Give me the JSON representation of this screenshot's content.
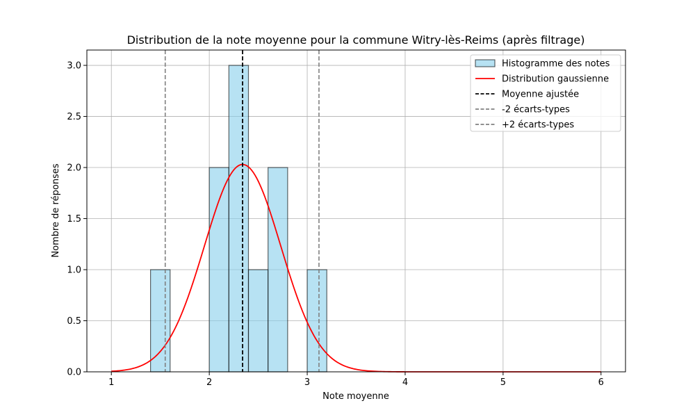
{
  "chart_data": {
    "type": "bar",
    "title": "Distribution de la note moyenne pour la commune Witry-lès-Reims (après filtrage)",
    "xlabel": "Note moyenne",
    "ylabel": "Nombre de réponses",
    "xlim": [
      0.75,
      6.25
    ],
    "ylim": [
      0,
      3.15
    ],
    "x_ticks": [
      1,
      2,
      3,
      4,
      5,
      6
    ],
    "x_tick_labels": [
      "1",
      "2",
      "3",
      "4",
      "5",
      "6"
    ],
    "y_ticks": [
      0,
      0.5,
      1,
      1.5,
      2,
      2.5,
      3
    ],
    "y_tick_labels": [
      "0.0",
      "0.5",
      "1.0",
      "1.5",
      "2.0",
      "2.5",
      "3.0"
    ],
    "grid": true,
    "legend_position": "top-right",
    "histogram": {
      "name": "Histogramme des notes",
      "color": "#87CEEB",
      "edge_color": "#000000",
      "bins": [
        {
          "start": 1.4,
          "end": 1.6,
          "count": 1
        },
        {
          "start": 2.0,
          "end": 2.2,
          "count": 2
        },
        {
          "start": 2.2,
          "end": 2.4,
          "count": 3
        },
        {
          "start": 2.4,
          "end": 2.6,
          "count": 1
        },
        {
          "start": 2.6,
          "end": 2.8,
          "count": 2
        },
        {
          "start": 3.0,
          "end": 3.2,
          "count": 1
        }
      ]
    },
    "gaussian": {
      "name": "Distribution gaussienne",
      "color": "#ff0000",
      "mean": 2.34,
      "std": 0.39,
      "peak": 2.03,
      "x_range": [
        1,
        6
      ]
    },
    "vlines": [
      {
        "name": "Moyenne ajustée",
        "x": 2.34,
        "color": "#000000"
      },
      {
        "name": "-2 écarts-types",
        "x": 1.55,
        "color": "#808080"
      },
      {
        "name": "+2 écarts-types",
        "x": 3.12,
        "color": "#808080"
      }
    ]
  }
}
